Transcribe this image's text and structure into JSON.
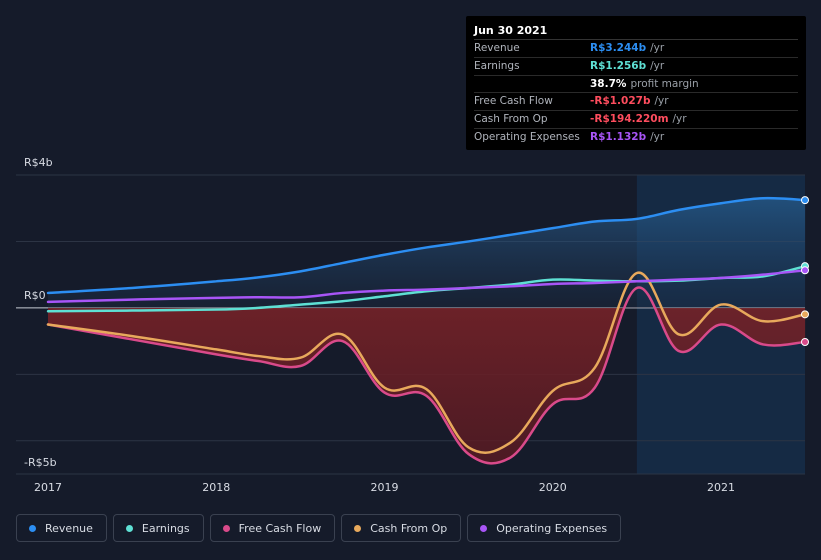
{
  "tooltip": {
    "date": "Jun 30 2021",
    "rows": [
      {
        "label": "Revenue",
        "value": "R$3.244b",
        "suffix": "/yr",
        "color": "#2c8ef2"
      },
      {
        "label": "Earnings",
        "value": "R$1.256b",
        "suffix": "/yr",
        "color": "#5ee0d4"
      },
      {
        "label": "",
        "value": "38.7%",
        "suffix": "profit margin",
        "color": "#ffffff"
      },
      {
        "label": "Free Cash Flow",
        "value": "-R$1.027b",
        "suffix": "/yr",
        "color": "#ff4d5e"
      },
      {
        "label": "Cash From Op",
        "value": "-R$194.220m",
        "suffix": "/yr",
        "color": "#ff4d5e"
      },
      {
        "label": "Operating Expenses",
        "value": "R$1.132b",
        "suffix": "/yr",
        "color": "#a855f7"
      }
    ]
  },
  "chart_data": {
    "type": "area",
    "y_top_label": "R$4b",
    "y_zero_label": "R$0",
    "y_bottom_label": "-R$5b",
    "ylim": [
      -5,
      4
    ],
    "xlim": [
      2017,
      2021.5
    ],
    "x_ticks": [
      "2017",
      "2018",
      "2019",
      "2020",
      "2021"
    ],
    "x_tick_values": [
      2017,
      2018,
      2019,
      2020,
      2021
    ],
    "highlight_from": 2020.5,
    "series": [
      {
        "name": "Revenue",
        "color": "#2c8ef2",
        "x": [
          2017,
          2017.5,
          2018,
          2018.25,
          2018.5,
          2018.75,
          2019,
          2019.25,
          2019.5,
          2019.75,
          2020,
          2020.25,
          2020.5,
          2020.75,
          2021,
          2021.25,
          2021.5
        ],
        "y": [
          0.45,
          0.6,
          0.8,
          0.92,
          1.1,
          1.35,
          1.6,
          1.82,
          2.0,
          2.2,
          2.4,
          2.6,
          2.68,
          2.95,
          3.15,
          3.3,
          3.244
        ]
      },
      {
        "name": "Earnings",
        "color": "#5ee0d4",
        "x": [
          2017,
          2017.5,
          2018,
          2018.25,
          2018.5,
          2018.75,
          2019,
          2019.25,
          2019.5,
          2019.75,
          2020,
          2020.25,
          2020.5,
          2020.75,
          2021,
          2021.25,
          2021.5
        ],
        "y": [
          -0.1,
          -0.08,
          -0.05,
          0.0,
          0.1,
          0.2,
          0.35,
          0.5,
          0.6,
          0.7,
          0.85,
          0.82,
          0.8,
          0.82,
          0.9,
          0.95,
          1.256
        ]
      },
      {
        "name": "Free Cash Flow",
        "color": "#d94a8a",
        "x": [
          2017,
          2017.5,
          2018,
          2018.25,
          2018.5,
          2018.75,
          2019,
          2019.25,
          2019.5,
          2019.75,
          2020,
          2020.25,
          2020.5,
          2020.75,
          2021,
          2021.25,
          2021.5
        ],
        "y": [
          -0.5,
          -0.95,
          -1.4,
          -1.6,
          -1.75,
          -1.0,
          -2.55,
          -2.65,
          -4.4,
          -4.5,
          -2.9,
          -2.4,
          0.6,
          -1.3,
          -0.5,
          -1.1,
          -1.027
        ]
      },
      {
        "name": "Cash From Op",
        "color": "#e8a95c",
        "x": [
          2017,
          2017.5,
          2018,
          2018.25,
          2018.5,
          2018.75,
          2019,
          2019.25,
          2019.5,
          2019.75,
          2020,
          2020.25,
          2020.5,
          2020.75,
          2021,
          2021.25,
          2021.5
        ],
        "y": [
          -0.5,
          -0.85,
          -1.25,
          -1.45,
          -1.5,
          -0.8,
          -2.4,
          -2.45,
          -4.2,
          -4.05,
          -2.5,
          -1.8,
          1.05,
          -0.8,
          0.1,
          -0.4,
          -0.194
        ]
      },
      {
        "name": "Operating Expenses",
        "color": "#a855f7",
        "x": [
          2017,
          2017.5,
          2018,
          2018.25,
          2018.5,
          2018.75,
          2019,
          2019.25,
          2019.5,
          2019.75,
          2020,
          2020.25,
          2020.5,
          2020.75,
          2021,
          2021.25,
          2021.5
        ],
        "y": [
          0.18,
          0.25,
          0.3,
          0.32,
          0.32,
          0.45,
          0.52,
          0.55,
          0.6,
          0.65,
          0.72,
          0.75,
          0.8,
          0.85,
          0.9,
          1.0,
          1.132
        ]
      }
    ]
  },
  "legend": [
    {
      "label": "Revenue",
      "color": "#2c8ef2"
    },
    {
      "label": "Earnings",
      "color": "#5ee0d4"
    },
    {
      "label": "Free Cash Flow",
      "color": "#d94a8a"
    },
    {
      "label": "Cash From Op",
      "color": "#e8a95c"
    },
    {
      "label": "Operating Expenses",
      "color": "#a855f7"
    }
  ]
}
